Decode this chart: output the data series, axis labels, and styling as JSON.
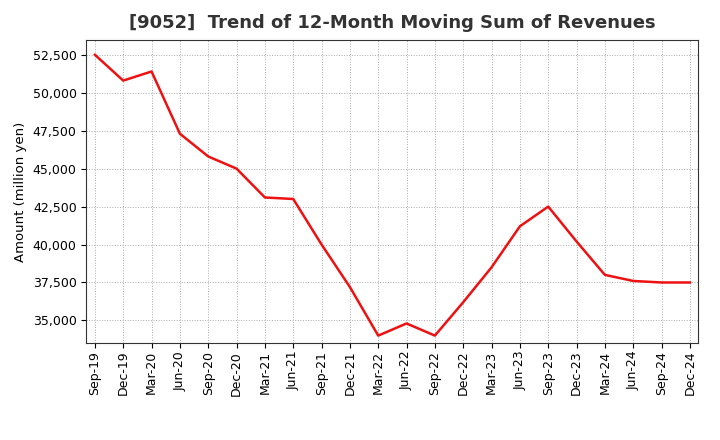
{
  "title": "[9052]  Trend of 12-Month Moving Sum of Revenues",
  "ylabel": "Amount (million yen)",
  "line_color": "#EE1111",
  "line_width": 1.8,
  "background_color": "#FFFFFF",
  "grid_color": "#AAAAAA",
  "labels": [
    "Sep-19",
    "Dec-19",
    "Mar-20",
    "Jun-20",
    "Sep-20",
    "Dec-20",
    "Mar-21",
    "Jun-21",
    "Sep-21",
    "Dec-21",
    "Mar-22",
    "Jun-22",
    "Sep-22",
    "Dec-22",
    "Mar-23",
    "Jun-23",
    "Sep-23",
    "Dec-23",
    "Mar-24",
    "Jun-24",
    "Sep-24",
    "Dec-24"
  ],
  "values": [
    52500,
    50800,
    51400,
    47300,
    45800,
    45000,
    43100,
    43000,
    40000,
    37200,
    34000,
    34800,
    34000,
    36200,
    38500,
    41200,
    42500,
    40200,
    38000,
    37600,
    37500,
    37500
  ],
  "ylim_min": 33500,
  "ylim_max": 53500,
  "yticks": [
    35000,
    37500,
    40000,
    42500,
    45000,
    47500,
    50000,
    52500
  ],
  "title_fontsize": 13,
  "label_fontsize": 9.5,
  "tick_fontsize": 9
}
